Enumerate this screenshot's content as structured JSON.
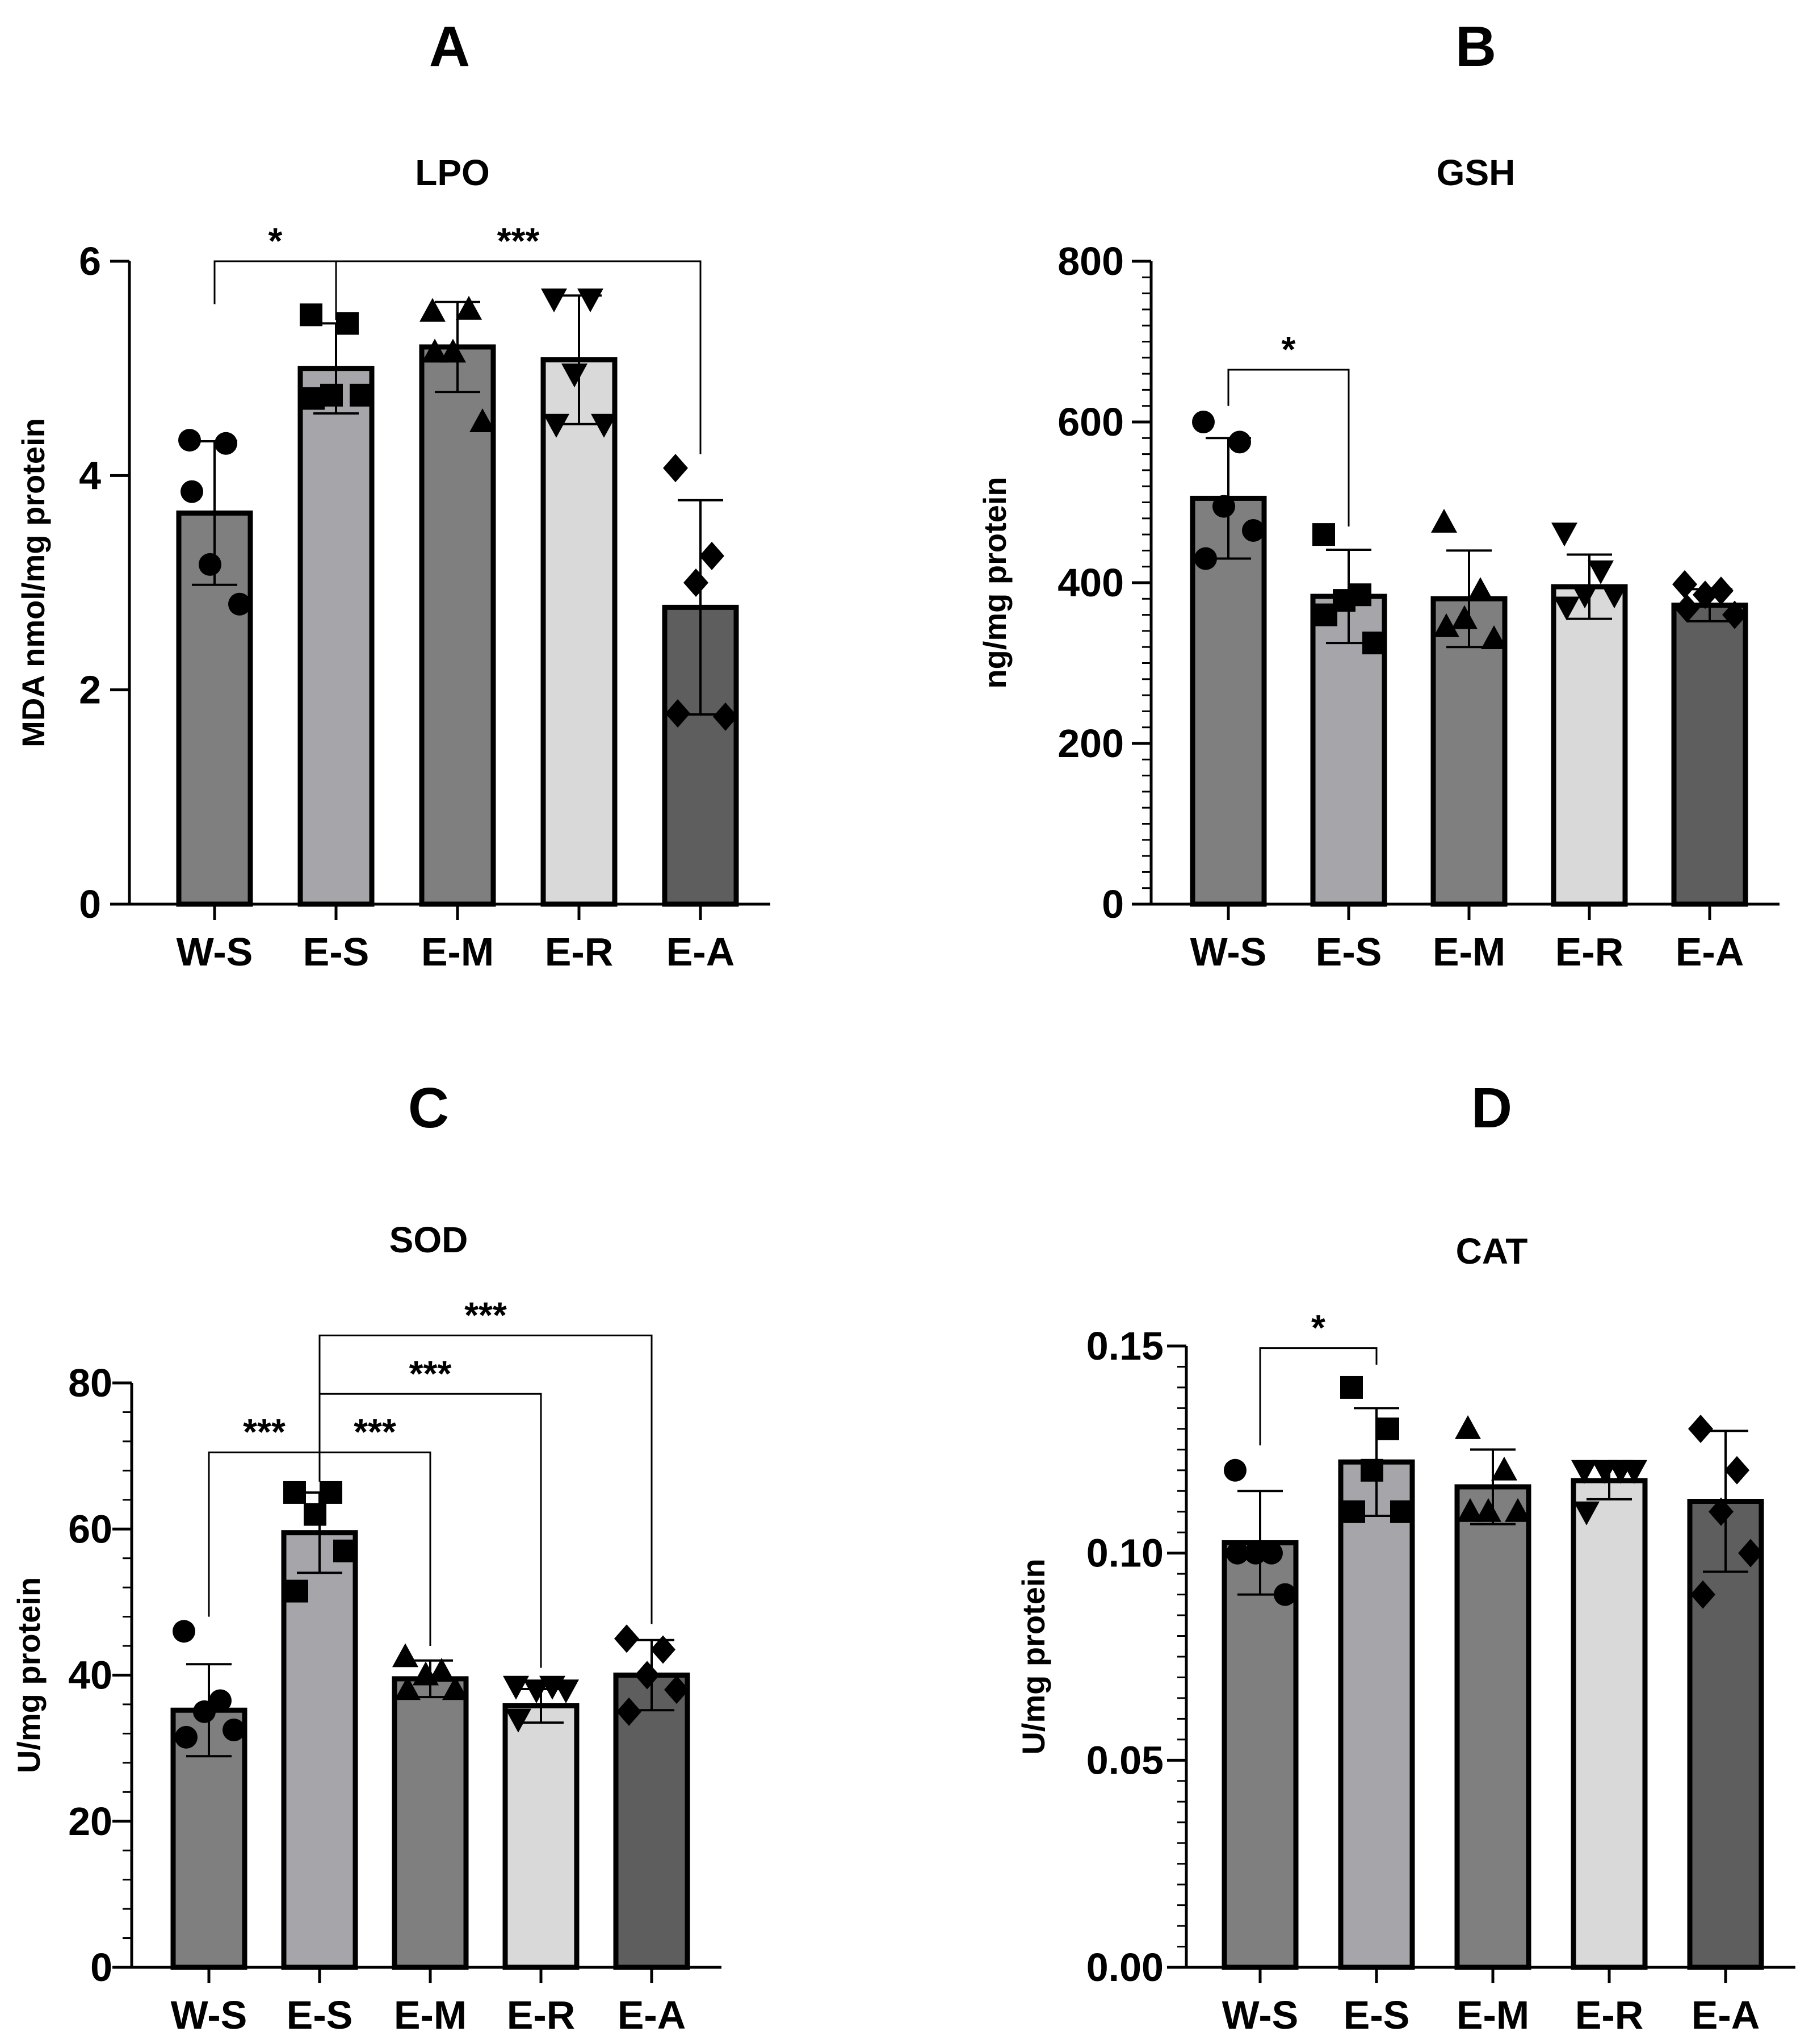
{
  "panels": [
    {
      "letter": "A"
    },
    {
      "letter": "B"
    },
    {
      "letter": "C"
    },
    {
      "letter": "D"
    }
  ],
  "chart_data": [
    {
      "type": "bar",
      "title": "LPO",
      "ylabel": "MDA nmol/mg protein",
      "xlabel": "",
      "ylim": [
        0,
        6
      ],
      "yticks": [
        0,
        2,
        4,
        6
      ],
      "ytick_labels": [
        "0",
        "2",
        "4",
        "6"
      ],
      "minor_ticks": 0,
      "categories": [
        "W-S",
        "E-S",
        "E-M",
        "E-R",
        "E-A"
      ],
      "values": [
        3.65,
        5.0,
        5.2,
        5.08,
        2.77
      ],
      "errors": [
        0.67,
        0.42,
        0.42,
        0.6,
        1.0
      ],
      "fills": [
        "#7f7f7f",
        "#a6a5aa",
        "#7f7f7f",
        "#d9d9d9",
        "#5e5e5e"
      ],
      "points": [
        [
          4.33,
          4.3,
          3.17,
          2.8,
          3.85
        ],
        [
          5.5,
          5.42,
          4.75,
          4.75,
          4.72
        ],
        [
          5.53,
          5.55,
          5.15,
          4.5,
          5.15
        ],
        [
          5.65,
          5.65,
          4.95,
          4.48,
          4.48
        ],
        [
          4.07,
          3.25,
          3.0,
          1.75,
          1.78
        ]
      ],
      "markers": [
        "circle",
        "square",
        "triangle-up",
        "triangle-down",
        "diamond"
      ],
      "comparisons": [
        {
          "label": "*",
          "from": 0,
          "to": 1,
          "level": 6.0,
          "drops": [
            5.6,
            5.45
          ]
        },
        {
          "label": "***",
          "from": 1,
          "to": 4,
          "level": 6.0,
          "drops": [
            5.45,
            4.2
          ]
        }
      ]
    },
    {
      "type": "bar",
      "title": "GSH",
      "ylabel": "ng/mg protein",
      "xlabel": "",
      "ylim": [
        0,
        800
      ],
      "yticks": [
        0,
        200,
        400,
        600,
        800
      ],
      "ytick_labels": [
        "0",
        "200",
        "400",
        "600",
        "800"
      ],
      "minor_ticks": 9,
      "categories": [
        "W-S",
        "E-S",
        "E-M",
        "E-R",
        "E-A"
      ],
      "values": [
        505,
        383,
        380,
        395,
        372
      ],
      "errors": [
        75,
        58,
        60,
        40,
        20
      ],
      "fills": [
        "#7f7f7f",
        "#a6a5aa",
        "#7f7f7f",
        "#d9d9d9",
        "#5e5e5e"
      ],
      "points": [
        [
          600,
          575,
          495,
          465,
          430
        ],
        [
          460,
          385,
          378,
          325,
          360
        ],
        [
          475,
          390,
          355,
          330,
          345
        ],
        [
          462,
          415,
          385,
          385,
          370
        ],
        [
          398,
          390,
          385,
          360,
          368
        ]
      ],
      "markers": [
        "circle",
        "square",
        "triangle-up",
        "triangle-down",
        "diamond"
      ],
      "comparisons": [
        {
          "label": "*",
          "from": 0,
          "to": 1,
          "level": 665,
          "drops": [
            620,
            470
          ]
        }
      ]
    },
    {
      "type": "bar",
      "title": "SOD",
      "ylabel": "U/mg protein",
      "xlabel": "",
      "ylim": [
        0,
        80
      ],
      "yticks": [
        0,
        20,
        40,
        60,
        80
      ],
      "ytick_labels": [
        "0",
        "20",
        "40",
        "60",
        "80"
      ],
      "minor_ticks": 4,
      "categories": [
        "W-S",
        "E-S",
        "E-M",
        "E-R",
        "E-A"
      ],
      "values": [
        35.2,
        59.5,
        39.5,
        35.8,
        40.0
      ],
      "errors": [
        6.3,
        5.5,
        2.5,
        2.3,
        4.8
      ],
      "fills": [
        "#7f7f7f",
        "#a6a5aa",
        "#7f7f7f",
        "#d9d9d9",
        "#5e5e5e"
      ],
      "points": [
        [
          46,
          36.5,
          35,
          32.5,
          31.5
        ],
        [
          65,
          65,
          62,
          57,
          51.5
        ],
        [
          42.5,
          40.5,
          40,
          38,
          38
        ],
        [
          38.5,
          38.5,
          38,
          38,
          34
        ],
        [
          45,
          43.5,
          40,
          38,
          35
        ]
      ],
      "markers": [
        "circle",
        "square",
        "triangle-up",
        "triangle-down",
        "diamond"
      ],
      "comparisons": [
        {
          "label": "***",
          "from": 0,
          "to": 1,
          "level": 70.5,
          "drops": [
            48,
            66.5
          ]
        },
        {
          "label": "***",
          "from": 1,
          "to": 2,
          "level": 70.5,
          "drops": [
            66.5,
            44
          ]
        },
        {
          "label": "***",
          "from": 1,
          "to": 3,
          "level": 78.5,
          "drops": [
            66.5,
            41
          ]
        },
        {
          "label": "***",
          "from": 1,
          "to": 4,
          "level": 86.5,
          "drops": [
            66.5,
            47
          ]
        }
      ]
    },
    {
      "type": "bar",
      "title": "CAT",
      "ylabel": "U/mg protein",
      "xlabel": "",
      "ylim": [
        0,
        0.15
      ],
      "yticks": [
        0,
        0.05,
        0.1,
        0.15
      ],
      "ytick_labels": [
        "0.00",
        "0.05",
        "0.10",
        "0.15"
      ],
      "minor_ticks": 9,
      "categories": [
        "W-S",
        "E-S",
        "E-M",
        "E-R",
        "E-A"
      ],
      "values": [
        0.1025,
        0.122,
        0.116,
        0.1175,
        0.1125
      ],
      "errors": [
        0.0125,
        0.013,
        0.009,
        0.0045,
        0.017
      ],
      "fills": [
        "#7f7f7f",
        "#a6a5aa",
        "#7f7f7f",
        "#d9d9d9",
        "#5e5e5e"
      ],
      "points": [
        [
          0.12,
          0.1,
          0.1,
          0.09,
          0.1
        ],
        [
          0.14,
          0.13,
          0.12,
          0.11,
          0.11
        ],
        [
          0.13,
          0.12,
          0.11,
          0.11,
          0.11
        ],
        [
          0.12,
          0.12,
          0.12,
          0.12,
          0.11
        ],
        [
          0.13,
          0.12,
          0.11,
          0.1,
          0.09
        ]
      ],
      "markers": [
        "circle",
        "square",
        "triangle-up",
        "triangle-down",
        "diamond"
      ],
      "comparisons": [
        {
          "label": "*",
          "from": 0,
          "to": 1,
          "level": 0.1495,
          "drops": [
            0.126,
            0.1455
          ]
        }
      ]
    }
  ]
}
